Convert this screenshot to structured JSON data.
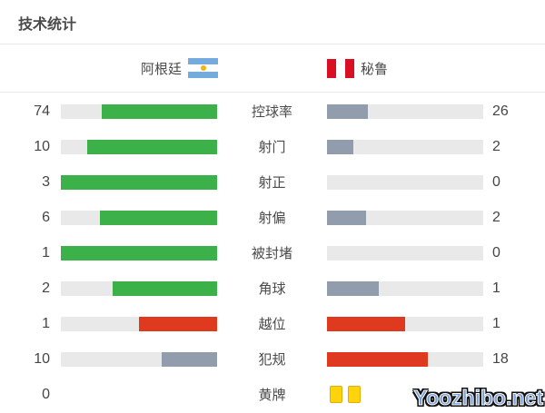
{
  "title": "技术统计",
  "teams": {
    "home": {
      "name": "阿根廷",
      "flag": "argentina"
    },
    "away": {
      "name": "秘鲁",
      "flag": "peru"
    }
  },
  "colors": {
    "green": "#3cb049",
    "gray": "#919dac",
    "red": "#df3a1f",
    "track": "#e9e9e9",
    "yellow_card_fill": "#ffd40c",
    "yellow_card_border": "#e2ae06",
    "argentina_blue": "#74acdf",
    "argentina_sun": "#f6b40e",
    "peru_red": "#d91023"
  },
  "stats": [
    {
      "label": "控球率",
      "home": 74,
      "away": 26,
      "home_pct": 74,
      "away_pct": 26,
      "home_color": "green",
      "away_color": "gray",
      "bars": true
    },
    {
      "label": "射门",
      "home": 10,
      "away": 2,
      "home_pct": 83.3,
      "away_pct": 16.7,
      "home_color": "green",
      "away_color": "gray",
      "bars": true
    },
    {
      "label": "射正",
      "home": 3,
      "away": 0,
      "home_pct": 100,
      "away_pct": 0,
      "home_color": "green",
      "away_color": "gray",
      "bars": true
    },
    {
      "label": "射偏",
      "home": 6,
      "away": 2,
      "home_pct": 75,
      "away_pct": 25,
      "home_color": "green",
      "away_color": "gray",
      "bars": true
    },
    {
      "label": "被封堵",
      "home": 1,
      "away": 0,
      "home_pct": 100,
      "away_pct": 0,
      "home_color": "green",
      "away_color": "gray",
      "bars": true
    },
    {
      "label": "角球",
      "home": 2,
      "away": 1,
      "home_pct": 66.7,
      "away_pct": 33.3,
      "home_color": "green",
      "away_color": "gray",
      "bars": true
    },
    {
      "label": "越位",
      "home": 1,
      "away": 1,
      "home_pct": 50,
      "away_pct": 50,
      "home_color": "red",
      "away_color": "red",
      "bars": true
    },
    {
      "label": "犯规",
      "home": 10,
      "away": 18,
      "home_pct": 35.7,
      "away_pct": 64.3,
      "home_color": "gray",
      "away_color": "red",
      "bars": true
    },
    {
      "label": "黄牌",
      "home": 0,
      "away": "",
      "bars": false,
      "away_cards": 2
    }
  ],
  "watermark": "Yoozhibo.net",
  "chart_data": {
    "type": "bar",
    "orientation": "horizontal-paired",
    "title": "技术统计",
    "categories": [
      "控球率",
      "射门",
      "射正",
      "射偏",
      "被封堵",
      "角球",
      "越位",
      "犯规",
      "黄牌"
    ],
    "series": [
      {
        "name": "阿根廷",
        "values": [
          74,
          10,
          3,
          6,
          1,
          2,
          1,
          10,
          0
        ]
      },
      {
        "name": "秘鲁",
        "values": [
          26,
          2,
          0,
          2,
          0,
          1,
          1,
          18,
          2
        ]
      }
    ],
    "notes": "每行两条条形按双方数值占比填充；多数行主队绿色/客队蓝灰色，越位行双方红色，犯规行主队蓝灰客队红色，黄牌行客队以两张黄牌图标表示"
  }
}
